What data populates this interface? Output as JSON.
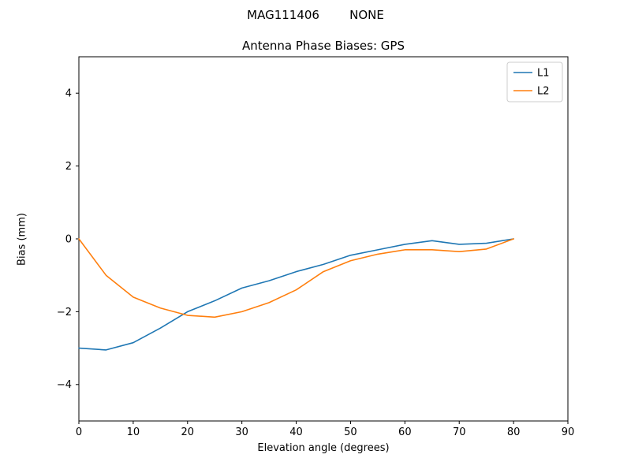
{
  "figure": {
    "suptitle": "MAG111406        NONE"
  },
  "chart_data": {
    "type": "line",
    "title": "Antenna Phase Biases: GPS",
    "xlabel": "Elevation angle (degrees)",
    "ylabel": "Bias (mm)",
    "xlim": [
      0,
      90
    ],
    "ylim": [
      -5,
      5
    ],
    "xticks": [
      0,
      10,
      20,
      30,
      40,
      50,
      60,
      70,
      80,
      90
    ],
    "yticks": [
      -4,
      -2,
      0,
      2,
      4
    ],
    "grid": false,
    "legend_position": "upper right",
    "x": [
      0,
      5,
      10,
      15,
      20,
      25,
      30,
      35,
      40,
      45,
      50,
      55,
      60,
      65,
      70,
      75,
      80
    ],
    "series": [
      {
        "name": "L1",
        "color": "#1f77b4",
        "values": [
          -3.0,
          -3.05,
          -2.85,
          -2.45,
          -2.0,
          -1.7,
          -1.35,
          -1.15,
          -0.9,
          -0.7,
          -0.45,
          -0.3,
          -0.15,
          -0.05,
          -0.15,
          -0.12,
          0.0
        ]
      },
      {
        "name": "L2",
        "color": "#ff7f0e",
        "values": [
          0.0,
          -1.0,
          -1.6,
          -1.9,
          -2.1,
          -2.15,
          -2.0,
          -1.75,
          -1.4,
          -0.9,
          -0.6,
          -0.42,
          -0.3,
          -0.3,
          -0.35,
          -0.28,
          0.0
        ]
      }
    ]
  }
}
